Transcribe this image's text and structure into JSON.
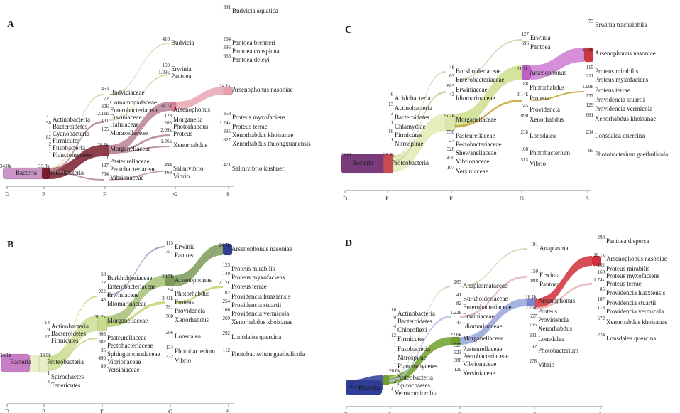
{
  "colors": {
    "axis": "#8a8a8a",
    "A": {
      "bacteria": "#c995c4",
      "proteo": "#7a1e2a",
      "morg": "#8c3b45",
      "ent": "#b0708a",
      "arsen": "#d9808f",
      "arsenNas": "#e6a0ad",
      "thin": "#b98a95",
      "thin2": "#cfd6a4"
    },
    "B": {
      "bacteria": "#c77ec7",
      "proteo": "#e8edc3",
      "morg": "#c9dc8e",
      "thin": "#c7d67c",
      "arsen": "#7b9a5a",
      "arsenNas": "#2f3d92",
      "mid": "#9fbe6d",
      "blue": "#6c74b8"
    },
    "C": {
      "bacteria": "#7a3b7a",
      "proteo": "#c54b54",
      "morg": "#dce8a8",
      "ent": "#c6da7e",
      "arsen": "#c25fc7",
      "arsenNas": "#c9393f",
      "thin": "#d3cfa5",
      "gold": "#c9a93d"
    },
    "D": {
      "bacteria": "#2e3d96",
      "proteo": "#6fa02d",
      "morg": "#8f9ed6",
      "ent": "#b8c5e6",
      "arsen": "#7c86d0",
      "arsenNas": "#d12f3a",
      "thin": "#d4d6b0",
      "thin2": "#e4b7bf"
    }
  },
  "panels": [
    {
      "id": "A",
      "letter": "A",
      "ticks": [
        "D",
        "P",
        "F",
        "G",
        "S"
      ],
      "nodes": [
        {
          "label": "Bacteria",
          "count": "34.0k"
        },
        {
          "label": "Proteobacteria",
          "count": "33.8k"
        },
        {
          "label": "Actinobacteria",
          "count": "21"
        },
        {
          "label": "Bacteroidetes",
          "count": "58"
        },
        {
          "label": "Cyanobacteria",
          "count": "1"
        },
        {
          "label": "Firmicutes",
          "count": "82"
        },
        {
          "label": "Fusobacteria",
          "count": "2"
        },
        {
          "label": "Planctomycetes",
          "count": "1"
        },
        {
          "label": "Budviciaceae",
          "count": "463"
        },
        {
          "label": "Comamonadaceae",
          "count": "72"
        },
        {
          "label": "Enterobacteriaceae",
          "count": "206"
        },
        {
          "label": "Erwiniaceae",
          "count": "2.11k"
        },
        {
          "label": "Hafniaceae",
          "count": "131"
        },
        {
          "label": "Moraxellaceae",
          "count": "165"
        },
        {
          "label": "Morganellaceae",
          "count": "28.1k"
        },
        {
          "label": "Pasteurellaceae",
          "count": "1"
        },
        {
          "label": "Pectobacteriaceae",
          "count": "197"
        },
        {
          "label": "Vibrionaceae",
          "count": "734"
        },
        {
          "label": "Budvicia",
          "count": "410"
        },
        {
          "label": "Erwinia",
          "count": "159"
        },
        {
          "label": "Pantoea",
          "count": "1.89k"
        },
        {
          "label": "Arsenophonus",
          "count": "24.1k"
        },
        {
          "label": "Morganella",
          "count": "123"
        },
        {
          "label": "Photorhabdus",
          "count": "263"
        },
        {
          "label": "Proteus",
          "count": "2.09k"
        },
        {
          "label": "Xenorhabdus",
          "count": "1.26k"
        },
        {
          "label": "Salinivibrio",
          "count": "494"
        },
        {
          "label": "Vibrio",
          "count": "168"
        },
        {
          "label": "Budvicia aquatica",
          "count": "391"
        },
        {
          "label": "Pantoea brenneri",
          "count": "264"
        },
        {
          "label": "Pantoea conspicua",
          "count": "396"
        },
        {
          "label": "Pantoea deleyi",
          "count": "653"
        },
        {
          "label": "Arsenophonus nasoniae",
          "count": "24.1k"
        },
        {
          "label": "Proteus myxofaciens",
          "count": "358"
        },
        {
          "label": "Proteus terrae",
          "count": "1.24k"
        },
        {
          "label": "Xenorhabdus khoisanae",
          "count": "395"
        },
        {
          "label": "Xenorhabdus thuongxuanensis",
          "count": "627"
        },
        {
          "label": "Salinivibrio kushneri",
          "count": "471"
        }
      ]
    },
    {
      "id": "B",
      "letter": "B",
      "ticks": [
        "D",
        "P",
        "F",
        "G",
        "S"
      ],
      "nodes": [
        {
          "label": "Bacteria",
          "count": "34.1k"
        },
        {
          "label": "Proteobacteria",
          "count": "33.9k"
        },
        {
          "label": "Actinobacteria",
          "count": "14"
        },
        {
          "label": "Bacteroidetes",
          "count": "9"
        },
        {
          "label": "Firmicutes",
          "count": "27"
        },
        {
          "label": "Spirochaetes",
          "count": "1"
        },
        {
          "label": "Tenericutes",
          "count": "3"
        },
        {
          "label": "Burkholderiaceae",
          "count": "58"
        },
        {
          "label": "Enterobacteriaceae",
          "count": "72"
        },
        {
          "label": "Erwiniaceae",
          "count": "922"
        },
        {
          "label": "Idiomarinaceae",
          "count": "48"
        },
        {
          "label": "Morganellaceae",
          "count": "30.2k"
        },
        {
          "label": "Pasteurellaceae",
          "count": "663"
        },
        {
          "label": "Pectobacteriaceae",
          "count": "382"
        },
        {
          "label": "Sphingomonadaceae",
          "count": "35"
        },
        {
          "label": "Vibrionaceae",
          "count": "499"
        },
        {
          "label": "Yersiniaceae",
          "count": "89"
        },
        {
          "label": "Erwinia",
          "count": "113"
        },
        {
          "label": "Pantoea",
          "count": "751"
        },
        {
          "label": "Arsenophonus",
          "count": "24.7k"
        },
        {
          "label": "Photorhabdus",
          "count": "94"
        },
        {
          "label": "Proteus",
          "count": "3.41k"
        },
        {
          "label": "Providencia",
          "count": "791"
        },
        {
          "label": "Xenorhabdus",
          "count": "760"
        },
        {
          "label": "Lonsdalea",
          "count": "296"
        },
        {
          "label": "Photobacterium",
          "count": "134"
        },
        {
          "label": "Vibrio",
          "count": "332"
        },
        {
          "label": "Arsenophonus nasoniae",
          "count": "24.7k"
        },
        {
          "label": "Proteus mirabilis",
          "count": "123"
        },
        {
          "label": "Proteus myxofaciens",
          "count": "149"
        },
        {
          "label": "Proteus terrae",
          "count": "2.12k"
        },
        {
          "label": "Providencia huaxiensis",
          "count": "82"
        },
        {
          "label": "Providencia stuartii",
          "count": "254"
        },
        {
          "label": "Providencia vermicola",
          "count": "106"
        },
        {
          "label": "Xenorhabdus khoisanae",
          "count": "269"
        },
        {
          "label": "Lonsdalea quercina",
          "count": "292"
        },
        {
          "label": "Photobacterium gaetbulicola",
          "count": "112"
        }
      ]
    },
    {
      "id": "C",
      "letter": "C",
      "ticks": [
        "D",
        "P",
        "F",
        "G",
        "S"
      ],
      "nodes": [
        {
          "label": "Bacteria",
          "count": "29.6k"
        },
        {
          "label": "Proteobacteria",
          "count": "29.5k"
        },
        {
          "label": "Acidobacteria",
          "count": "6"
        },
        {
          "label": "Actinobacteria",
          "count": "13"
        },
        {
          "label": "Bacteroidetes",
          "count": "3"
        },
        {
          "label": "Chlamydiae",
          "count": "1"
        },
        {
          "label": "Firmicutes",
          "count": "16"
        },
        {
          "label": "Nitrospirae",
          "count": "1"
        },
        {
          "label": "Burkholderiaceae",
          "count": "48"
        },
        {
          "label": "Enterobacteriaceae",
          "count": "63"
        },
        {
          "label": "Erwiniaceae",
          "count": "883"
        },
        {
          "label": "Idiomarinaceae",
          "count": "43"
        },
        {
          "label": "Morganellaceae",
          "count": "26.2k"
        },
        {
          "label": "Pasteurellaceae",
          "count": "550"
        },
        {
          "label": "Pectobacteriaceae",
          "count": "27"
        },
        {
          "label": "Shewanellaceae",
          "count": "328"
        },
        {
          "label": "Vibrionaceae",
          "count": "450"
        },
        {
          "label": "Yersiniaceae",
          "count": "107"
        },
        {
          "label": "Erwinia",
          "count": "127"
        },
        {
          "label": "Pantoea",
          "count": "696"
        },
        {
          "label": "Arsenophonus",
          "count": "21.1k"
        },
        {
          "label": "Photorhabdus",
          "count": "88"
        },
        {
          "label": "Proteus",
          "count": "3.14k"
        },
        {
          "label": "Providencia",
          "count": "745"
        },
        {
          "label": "Xenorhabdus",
          "count": "890"
        },
        {
          "label": "Lonsdalea",
          "count": "236"
        },
        {
          "label": "Photobacterium",
          "count": "108"
        },
        {
          "label": "Vibrio",
          "count": "313"
        },
        {
          "label": "Erwinia tracheiphila",
          "count": "73"
        },
        {
          "label": "Arsenophonus nasoniae",
          "count": "21.1k"
        },
        {
          "label": "Proteus mirabilis",
          "count": "115"
        },
        {
          "label": "Proteus myxofaciens",
          "count": "211"
        },
        {
          "label": "Proteus terrae",
          "count": "1.99k"
        },
        {
          "label": "Providencia stuartii",
          "count": "237"
        },
        {
          "label": "Providencia vermicola",
          "count": "129"
        },
        {
          "label": "Xenorhabdus khoisanae",
          "count": "681"
        },
        {
          "label": "Lonsdalea quercina",
          "count": "234"
        },
        {
          "label": "Photobacterium gaetbulicola",
          "count": "95"
        }
      ]
    },
    {
      "id": "D",
      "letter": "D",
      "ticks": [
        "D",
        "P",
        "F",
        "G",
        "S"
      ],
      "nodes": [
        {
          "label": "Bacteria",
          "count": "26.9k"
        },
        {
          "label": "Proteobacteria",
          "count": "26.6k"
        },
        {
          "label": "Actinobacteria",
          "count": "16"
        },
        {
          "label": "Bacteroidetes",
          "count": "9"
        },
        {
          "label": "Chloroflexi",
          "count": "4"
        },
        {
          "label": "Firmicutes",
          "count": "12"
        },
        {
          "label": "Fusobacteria",
          "count": "1"
        },
        {
          "label": "Nitrospirae",
          "count": "1"
        },
        {
          "label": "Planctomycetes",
          "count": "1"
        },
        {
          "label": "Spirochaetes",
          "count": "2"
        },
        {
          "label": "Verrucomicrobia",
          "count": "4"
        },
        {
          "label": "Anaplasmataceae",
          "count": "263"
        },
        {
          "label": "Burkholderiaceae",
          "count": "41"
        },
        {
          "label": "Enterobacteriaceae",
          "count": "82"
        },
        {
          "label": "Erwiniaceae",
          "count": "1.22k"
        },
        {
          "label": "Idiomarinaceae",
          "count": "47"
        },
        {
          "label": "Morganellaceae",
          "count": "22.6k"
        },
        {
          "label": "Pasteurellaceae",
          "count": "527"
        },
        {
          "label": "Pectobacteriaceae",
          "count": "323"
        },
        {
          "label": "Vibrionaceae",
          "count": "388"
        },
        {
          "label": "Yersiniaceae",
          "count": "129"
        },
        {
          "label": "Anaplasma",
          "count": "191"
        },
        {
          "label": "Erwinia",
          "count": "150"
        },
        {
          "label": "Pantoea",
          "count": "988"
        },
        {
          "label": "Arsenophonus",
          "count": "18.1k"
        },
        {
          "label": "Proteus",
          "count": "2.76k"
        },
        {
          "label": "Providencia",
          "count": "667"
        },
        {
          "label": "Xenorhabdus",
          "count": "755"
        },
        {
          "label": "Lonsdalea",
          "count": "231"
        },
        {
          "label": "Photobacterium",
          "count": "92"
        },
        {
          "label": "Vibrio",
          "count": "278"
        },
        {
          "label": "Pantoea dispersa",
          "count": "298"
        },
        {
          "label": "Arsenophonus nasoniae",
          "count": "18.1k"
        },
        {
          "label": "Proteus mirabilis",
          "count": "102"
        },
        {
          "label": "Proteus myxofaciens",
          "count": "160"
        },
        {
          "label": "Proteus terrae",
          "count": "1.74k"
        },
        {
          "label": "Providencia huaxiensis",
          "count": "85"
        },
        {
          "label": "Providencia stuartii",
          "count": "187"
        },
        {
          "label": "Providencia vermicola",
          "count": "113"
        },
        {
          "label": "Xenorhabdus khoisanae",
          "count": "572"
        },
        {
          "label": "Lonsdalea quercina",
          "count": "224"
        }
      ]
    }
  ]
}
